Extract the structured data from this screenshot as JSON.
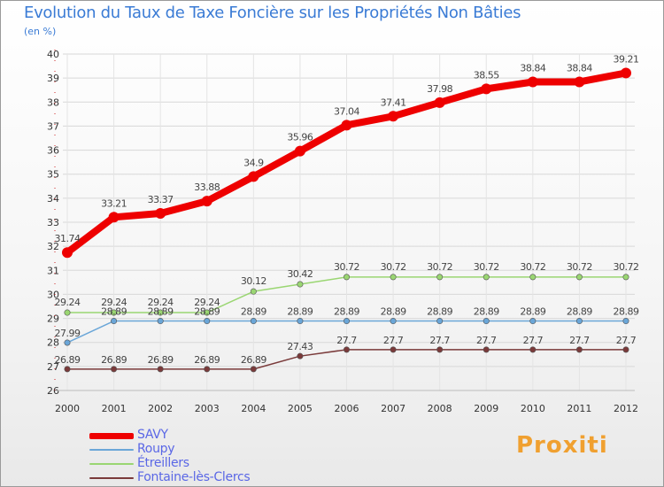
{
  "header": {
    "title": "Evolution du Taux de Taxe Foncière sur les Propriétés Non Bâties",
    "unit": "(en %)"
  },
  "logo": {
    "text": "Proxiti"
  },
  "chart_data": {
    "type": "line",
    "title": "Evolution du Taux de Taxe Foncière sur les Propriétés Non Bâties",
    "ylabel": "(en %)",
    "xlabel": "",
    "x": [
      "2000",
      "2001",
      "2002",
      "2003",
      "2004",
      "2005",
      "2006",
      "2007",
      "2008",
      "2009",
      "2010",
      "2011",
      "2012"
    ],
    "ylim": [
      26,
      40
    ],
    "yticks": [
      26,
      27,
      28,
      29,
      30,
      31,
      32,
      33,
      34,
      35,
      36,
      37,
      38,
      39,
      40
    ],
    "grid": true,
    "legend_position": "bottom-left",
    "series": [
      {
        "name": "SAVY",
        "color": "#ee0000",
        "values": [
          31.74,
          33.21,
          33.37,
          33.88,
          34.9,
          35.96,
          37.04,
          37.41,
          37.98,
          38.55,
          38.84,
          38.84,
          39.21
        ],
        "labels": [
          "31.74",
          "33.21",
          "33.37",
          "33.88",
          "34.9",
          "35.96",
          "37.04",
          "37.41",
          "37.98",
          "38.55",
          "38.84",
          "38.84",
          "39.21"
        ]
      },
      {
        "name": "Roupy",
        "color": "#6aa6d8",
        "values": [
          27.99,
          28.89,
          28.89,
          28.89,
          28.89,
          28.89,
          28.89,
          28.89,
          28.89,
          28.89,
          28.89,
          28.89,
          28.89
        ],
        "labels": [
          "27.99",
          "28.89",
          "28.89",
          "28.89",
          "28.89",
          "28.89",
          "28.89",
          "28.89",
          "28.89",
          "28.89",
          "28.89",
          "28.89",
          "28.89"
        ]
      },
      {
        "name": "Étreillers",
        "color": "#9ad672",
        "values": [
          29.24,
          29.24,
          29.24,
          29.24,
          30.12,
          30.42,
          30.72,
          30.72,
          30.72,
          30.72,
          30.72,
          30.72,
          30.72
        ],
        "labels": [
          "29.24",
          "29.24",
          "29.24",
          "29.24",
          "30.12",
          "30.42",
          "30.72",
          "30.72",
          "30.72",
          "30.72",
          "30.72",
          "30.72",
          "30.72"
        ]
      },
      {
        "name": "Fontaine-lès-Clercs",
        "color": "#7a3a3a",
        "values": [
          26.89,
          26.89,
          26.89,
          26.89,
          26.89,
          27.43,
          27.7,
          27.7,
          27.7,
          27.7,
          27.7,
          27.7,
          27.7
        ],
        "labels": [
          "26.89",
          "26.89",
          "26.89",
          "26.89",
          "26.89",
          "27.43",
          "27.7",
          "27.7",
          "27.7",
          "27.7",
          "27.7",
          "27.7",
          "27.7"
        ]
      }
    ]
  }
}
